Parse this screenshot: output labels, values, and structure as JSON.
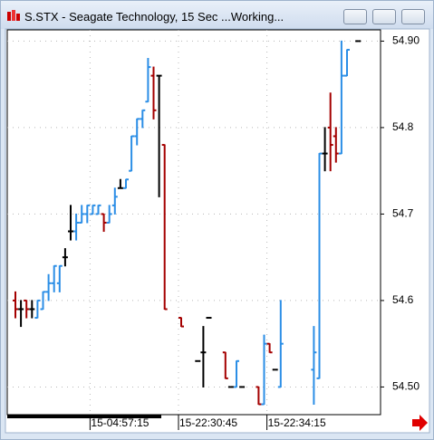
{
  "window_title": "S.STX - Seagate Technology, 15 Sec ...Working...",
  "chart_data": {
    "type": "ohlc",
    "categories": [
      null,
      null,
      null,
      null,
      null,
      null,
      null,
      null,
      null,
      null,
      null,
      null,
      null,
      null,
      "15-04:57:15",
      null,
      null,
      null,
      null,
      null,
      null,
      null,
      null,
      null,
      null,
      null,
      null,
      null,
      null,
      null,
      "15-22:30:45",
      null,
      null,
      null,
      null,
      null,
      null,
      null,
      null,
      null,
      null,
      null,
      null,
      null,
      null,
      null,
      "15-22:34:15",
      null,
      null,
      null,
      null,
      null,
      null,
      null,
      null,
      null,
      null,
      null,
      null,
      null,
      null,
      null,
      null
    ],
    "open": [
      54.6,
      54.59,
      54.6,
      54.59,
      54.58,
      54.59,
      54.61,
      54.62,
      54.62,
      54.65,
      54.68,
      54.68,
      54.69,
      54.7,
      54.7,
      54.7,
      54.7,
      54.69,
      54.71,
      54.73,
      54.73,
      54.75,
      54.79,
      54.81,
      54.83,
      54.86,
      54.86,
      54.78,
      null,
      null,
      54.58,
      null,
      null,
      54.53,
      54.54,
      54.58,
      null,
      null,
      54.54,
      54.5,
      54.5,
      54.5,
      null,
      null,
      54.5,
      54.48,
      54.55,
      54.52,
      54.5,
      null,
      null,
      null,
      null,
      null,
      54.52,
      54.51,
      54.77,
      54.8,
      54.79,
      54.77,
      54.86,
      null,
      54.9
    ],
    "high": [
      54.61,
      54.6,
      54.6,
      54.6,
      54.6,
      54.61,
      54.63,
      54.64,
      54.64,
      54.66,
      54.71,
      54.7,
      54.71,
      54.71,
      54.71,
      54.71,
      54.7,
      54.71,
      54.73,
      54.74,
      54.74,
      54.79,
      54.81,
      54.82,
      54.88,
      54.87,
      54.86,
      54.78,
      null,
      null,
      54.58,
      null,
      null,
      54.53,
      54.57,
      54.58,
      null,
      null,
      54.54,
      54.5,
      54.53,
      54.5,
      null,
      null,
      54.5,
      54.56,
      54.55,
      54.52,
      54.6,
      null,
      null,
      null,
      null,
      null,
      54.57,
      54.77,
      54.8,
      54.84,
      54.8,
      54.9,
      54.89,
      null,
      54.9
    ],
    "low": [
      54.58,
      54.57,
      54.58,
      54.58,
      54.58,
      54.59,
      54.6,
      54.61,
      54.61,
      54.64,
      54.67,
      54.67,
      54.69,
      54.69,
      54.7,
      54.7,
      54.68,
      54.69,
      54.7,
      54.73,
      54.73,
      54.75,
      54.78,
      54.8,
      54.83,
      54.81,
      54.72,
      54.59,
      null,
      null,
      54.57,
      null,
      null,
      54.53,
      54.5,
      54.58,
      null,
      null,
      54.51,
      54.5,
      54.5,
      54.5,
      null,
      null,
      54.48,
      54.48,
      54.54,
      54.52,
      54.5,
      null,
      null,
      null,
      null,
      null,
      54.48,
      54.51,
      54.75,
      54.75,
      54.76,
      54.77,
      54.86,
      null,
      54.9
    ],
    "close": [
      54.59,
      54.59,
      54.59,
      54.59,
      54.6,
      54.61,
      54.62,
      54.64,
      54.64,
      54.65,
      54.68,
      54.69,
      54.7,
      54.71,
      54.71,
      54.71,
      54.69,
      54.7,
      54.72,
      54.73,
      54.74,
      54.79,
      54.81,
      54.82,
      54.87,
      54.82,
      54.86,
      54.59,
      null,
      null,
      54.57,
      null,
      null,
      54.53,
      54.54,
      54.58,
      null,
      null,
      54.51,
      54.5,
      54.53,
      54.5,
      null,
      null,
      54.48,
      54.55,
      54.54,
      54.52,
      54.55,
      null,
      null,
      null,
      null,
      null,
      54.54,
      54.77,
      54.77,
      54.78,
      54.77,
      54.86,
      54.89,
      null,
      54.9
    ],
    "up_color": "#2b8ee6",
    "down_color": "#a40000",
    "flat_color": "#000000",
    "ylim": [
      54.468,
      54.913
    ],
    "yticks": [
      {
        "value": 54.5,
        "label": "54.50"
      },
      54.6,
      54.7,
      54.8,
      {
        "value": 54.9,
        "label": "54.90"
      }
    ],
    "grid": true
  }
}
